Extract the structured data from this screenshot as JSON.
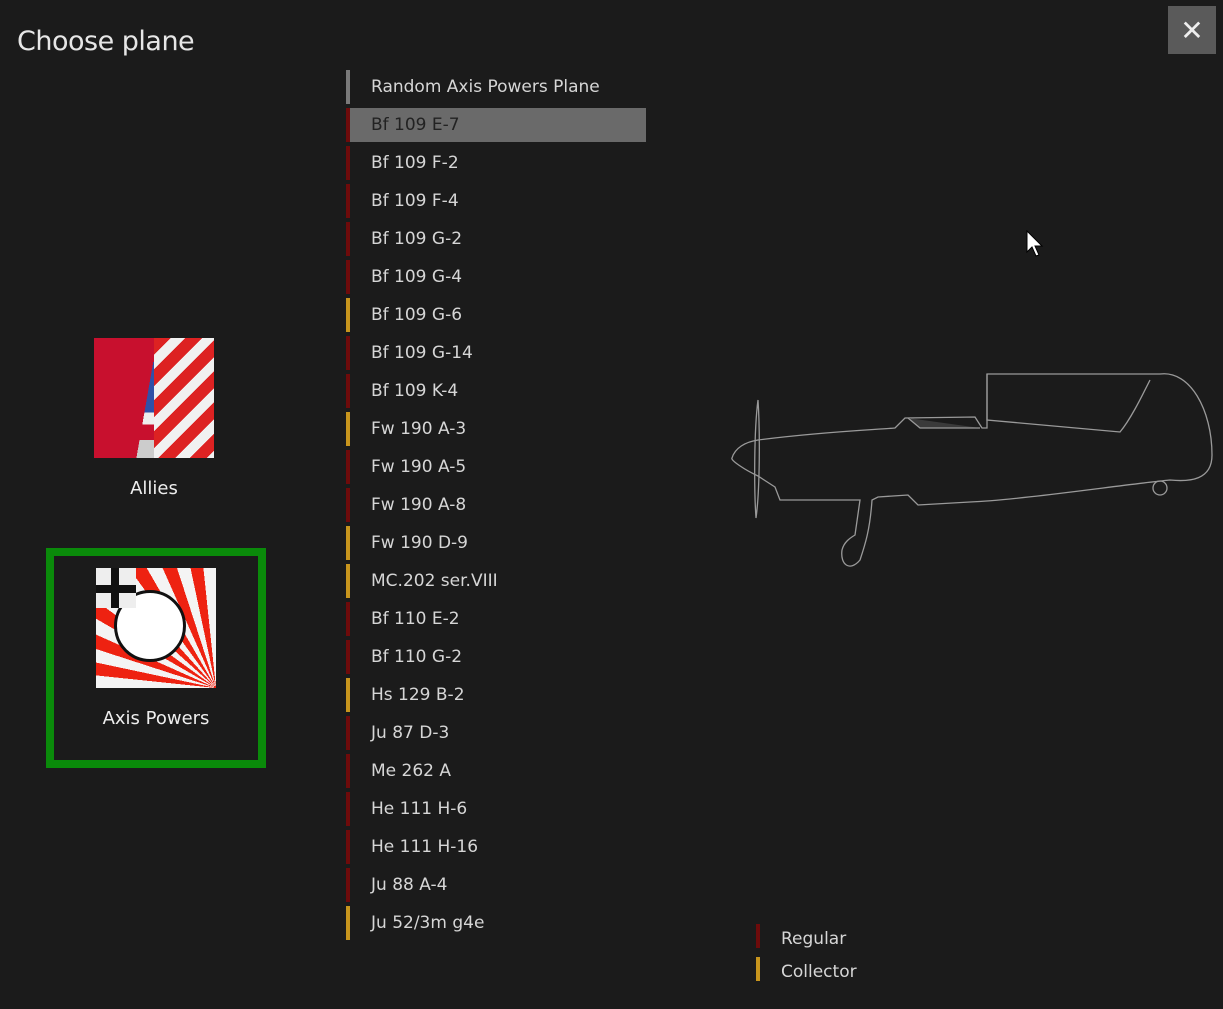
{
  "title": "Choose plane",
  "close_label": "✕",
  "colors": {
    "regular": "#6e0b0b",
    "collector": "#c8951d",
    "random": "#7a7a7a",
    "selected_border": "#0a8a0a"
  },
  "factions": [
    {
      "label": "Allies",
      "selected": false
    },
    {
      "label": "Axis Powers",
      "selected": true
    }
  ],
  "planes": [
    {
      "label": "Random Axis Powers Plane",
      "type": "random"
    },
    {
      "label": "Bf 109 E-7",
      "type": "regular",
      "selected": true
    },
    {
      "label": "Bf 109 F-2",
      "type": "regular"
    },
    {
      "label": "Bf 109 F-4",
      "type": "regular"
    },
    {
      "label": "Bf 109 G-2",
      "type": "regular"
    },
    {
      "label": "Bf 109 G-4",
      "type": "regular"
    },
    {
      "label": "Bf 109 G-6",
      "type": "collector"
    },
    {
      "label": "Bf 109 G-14",
      "type": "regular"
    },
    {
      "label": "Bf 109 K-4",
      "type": "regular"
    },
    {
      "label": "Fw 190 A-3",
      "type": "collector"
    },
    {
      "label": "Fw 190 A-5",
      "type": "regular"
    },
    {
      "label": "Fw 190 A-8",
      "type": "regular"
    },
    {
      "label": "Fw 190 D-9",
      "type": "collector"
    },
    {
      "label": "MC.202 ser.VIII",
      "type": "collector"
    },
    {
      "label": "Bf 110 E-2",
      "type": "regular"
    },
    {
      "label": "Bf 110 G-2",
      "type": "regular"
    },
    {
      "label": "Hs 129 B-2",
      "type": "collector"
    },
    {
      "label": "Ju 87 D-3",
      "type": "regular"
    },
    {
      "label": "Me 262 A",
      "type": "regular"
    },
    {
      "label": "He 111 H-6",
      "type": "regular"
    },
    {
      "label": "He 111 H-16",
      "type": "regular"
    },
    {
      "label": "Ju 88 A-4",
      "type": "regular"
    },
    {
      "label": "Ju 52/3m g4e",
      "type": "collector"
    }
  ],
  "legend": [
    {
      "label": "Regular",
      "type": "regular"
    },
    {
      "label": "Collector",
      "type": "collector"
    }
  ]
}
